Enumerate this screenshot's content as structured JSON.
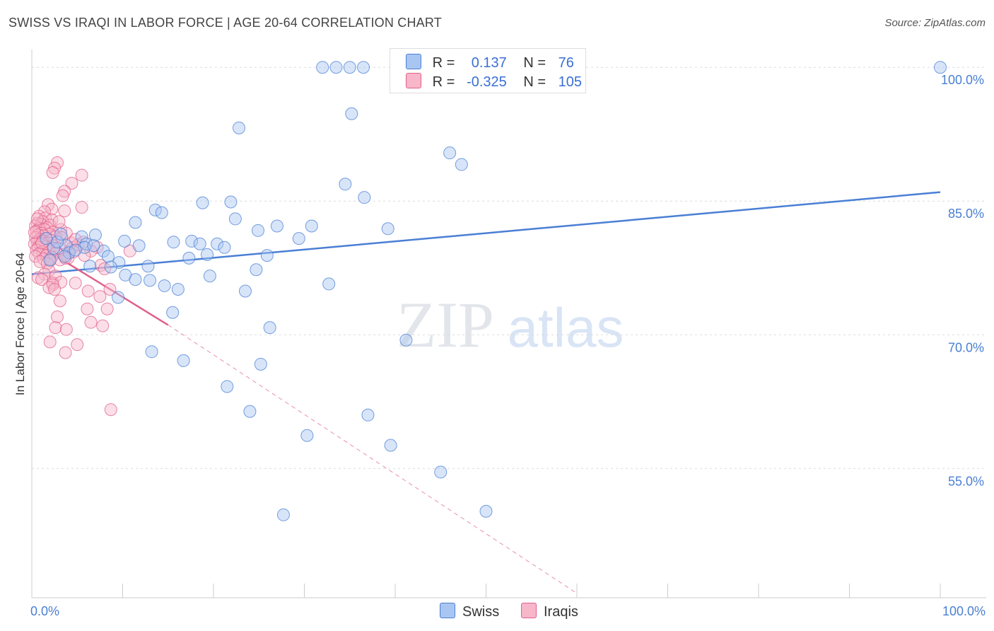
{
  "title": "SWISS VS IRAQI IN LABOR FORCE | AGE 20-64 CORRELATION CHART",
  "source": "Source: ZipAtlas.com",
  "watermark": {
    "zip": "ZIP",
    "atlas": "atlas"
  },
  "legend": {
    "rows": [
      {
        "r_label": "R =",
        "r_value": "0.137",
        "n_label": "N =",
        "n_value": "76",
        "color": "#a9c6f2"
      },
      {
        "r_label": "R =",
        "r_value": "-0.325",
        "n_label": "N =",
        "n_value": "105",
        "color": "#f7b6ca"
      }
    ]
  },
  "bottom_legend": [
    {
      "label": "Swiss",
      "color": "#a9c6f2"
    },
    {
      "label": "Iraqis",
      "color": "#f7b6ca"
    }
  ],
  "chart_data": {
    "type": "scatter",
    "title": "SWISS VS IRAQI IN LABOR FORCE | AGE 20-64 CORRELATION CHART",
    "xlabel": "",
    "ylabel": "In Labor Force | Age 20-64",
    "xlim": [
      0,
      100
    ],
    "ylim": [
      40.5,
      102
    ],
    "x_tick_labels": [
      "0.0%",
      "100.0%"
    ],
    "y_ticks": [
      100,
      85,
      70,
      55
    ],
    "y_tick_labels": [
      "100.0%",
      "85.0%",
      "70.0%",
      "55.0%"
    ],
    "grid": true,
    "series": [
      {
        "name": "Swiss",
        "color": "#4a7fd4",
        "fill": "#a9c6f2",
        "trend": {
          "x0": 0,
          "y0": 76.8,
          "x1": 100,
          "y1": 86.0,
          "dashed_to": null
        },
        "points": [
          [
            32.0,
            100
          ],
          [
            33.5,
            100
          ],
          [
            35.0,
            100
          ],
          [
            36.5,
            100
          ],
          [
            100,
            100
          ],
          [
            35.2,
            94.8
          ],
          [
            22.8,
            93.2
          ],
          [
            46.0,
            90.4
          ],
          [
            47.3,
            89.1
          ],
          [
            34.5,
            86.9
          ],
          [
            36.6,
            85.4
          ],
          [
            18.8,
            84.8
          ],
          [
            21.9,
            84.9
          ],
          [
            13.6,
            84.0
          ],
          [
            14.3,
            83.7
          ],
          [
            11.4,
            82.6
          ],
          [
            22.4,
            83.0
          ],
          [
            30.8,
            82.2
          ],
          [
            27.0,
            82.2
          ],
          [
            39.2,
            81.9
          ],
          [
            24.9,
            81.7
          ],
          [
            29.4,
            80.8
          ],
          [
            7.0,
            81.2
          ],
          [
            5.5,
            81.0
          ],
          [
            10.2,
            80.5
          ],
          [
            15.6,
            80.4
          ],
          [
            17.6,
            80.5
          ],
          [
            18.5,
            80.2
          ],
          [
            20.4,
            80.2
          ],
          [
            21.2,
            79.8
          ],
          [
            11.8,
            80.0
          ],
          [
            6.0,
            80.2
          ],
          [
            5.8,
            79.8
          ],
          [
            3.8,
            80.0
          ],
          [
            2.4,
            79.7
          ],
          [
            7.9,
            79.4
          ],
          [
            8.4,
            78.8
          ],
          [
            4.1,
            79.2
          ],
          [
            3.6,
            78.8
          ],
          [
            2.0,
            78.4
          ],
          [
            9.6,
            78.1
          ],
          [
            6.4,
            77.7
          ],
          [
            12.8,
            77.7
          ],
          [
            17.3,
            78.6
          ],
          [
            19.3,
            79.0
          ],
          [
            25.9,
            78.9
          ],
          [
            8.7,
            77.6
          ],
          [
            24.7,
            77.3
          ],
          [
            10.3,
            76.7
          ],
          [
            11.4,
            76.2
          ],
          [
            13.0,
            76.1
          ],
          [
            19.6,
            76.6
          ],
          [
            14.6,
            75.5
          ],
          [
            16.1,
            75.1
          ],
          [
            32.7,
            75.7
          ],
          [
            23.5,
            74.9
          ],
          [
            9.5,
            74.2
          ],
          [
            15.5,
            72.5
          ],
          [
            26.2,
            70.8
          ],
          [
            41.2,
            69.4
          ],
          [
            13.2,
            68.1
          ],
          [
            16.7,
            67.1
          ],
          [
            25.2,
            66.7
          ],
          [
            21.5,
            64.2
          ],
          [
            24.0,
            61.4
          ],
          [
            37.0,
            61.0
          ],
          [
            30.3,
            58.7
          ],
          [
            39.5,
            57.6
          ],
          [
            45.0,
            54.6
          ],
          [
            27.7,
            49.8
          ],
          [
            50.0,
            50.2
          ],
          [
            4.8,
            79.5
          ],
          [
            2.8,
            80.4
          ],
          [
            6.8,
            80.0
          ],
          [
            3.2,
            81.3
          ],
          [
            1.6,
            80.8
          ]
        ]
      },
      {
        "name": "Iraqis",
        "color": "#e0608a",
        "fill": "#f7b6ca",
        "trend": {
          "x0": 0,
          "y0": 80.5,
          "x1": 15.0,
          "y1": 71.1,
          "dashed_to": {
            "x": 60.0,
            "y": 41.0
          }
        },
        "points": [
          [
            2.8,
            89.3
          ],
          [
            2.5,
            88.7
          ],
          [
            2.3,
            88.2
          ],
          [
            5.5,
            87.9
          ],
          [
            4.4,
            87.0
          ],
          [
            3.6,
            86.1
          ],
          [
            3.4,
            85.6
          ],
          [
            1.8,
            84.6
          ],
          [
            5.5,
            84.3
          ],
          [
            2.2,
            84.1
          ],
          [
            3.6,
            83.9
          ],
          [
            1.4,
            83.8
          ],
          [
            0.8,
            83.3
          ],
          [
            1.5,
            83.1
          ],
          [
            2.2,
            82.9
          ],
          [
            1.2,
            82.7
          ],
          [
            0.6,
            82.5
          ],
          [
            1.0,
            82.4
          ],
          [
            2.0,
            82.3
          ],
          [
            0.4,
            82.2
          ],
          [
            1.7,
            82.0
          ],
          [
            0.8,
            81.9
          ],
          [
            1.4,
            81.8
          ],
          [
            3.2,
            81.8
          ],
          [
            0.5,
            81.6
          ],
          [
            2.3,
            81.5
          ],
          [
            1.1,
            81.4
          ],
          [
            1.9,
            81.3
          ],
          [
            0.7,
            81.2
          ],
          [
            1.3,
            81.1
          ],
          [
            2.6,
            81.0
          ],
          [
            0.4,
            80.9
          ],
          [
            1.6,
            80.8
          ],
          [
            0.9,
            80.7
          ],
          [
            2.1,
            80.6
          ],
          [
            1.2,
            80.5
          ],
          [
            0.6,
            80.4
          ],
          [
            1.8,
            80.3
          ],
          [
            0.3,
            80.2
          ],
          [
            1.0,
            80.1
          ],
          [
            2.4,
            80.0
          ],
          [
            1.5,
            79.9
          ],
          [
            0.7,
            79.8
          ],
          [
            3.0,
            79.7
          ],
          [
            1.9,
            79.6
          ],
          [
            0.5,
            79.5
          ],
          [
            4.2,
            79.4
          ],
          [
            1.2,
            79.3
          ],
          [
            2.7,
            79.2
          ],
          [
            0.8,
            79.1
          ],
          [
            3.5,
            79.0
          ],
          [
            1.6,
            78.9
          ],
          [
            0.4,
            78.8
          ],
          [
            2.2,
            78.7
          ],
          [
            4.0,
            78.6
          ],
          [
            1.3,
            78.5
          ],
          [
            3.1,
            78.4
          ],
          [
            2.0,
            78.3
          ],
          [
            0.9,
            78.2
          ],
          [
            1.7,
            78.0
          ],
          [
            4.3,
            80.3
          ],
          [
            4.5,
            79.8
          ],
          [
            5.1,
            80.1
          ],
          [
            3.8,
            81.4
          ],
          [
            4.8,
            80.7
          ],
          [
            3.0,
            82.7
          ],
          [
            7.2,
            79.8
          ],
          [
            6.5,
            79.4
          ],
          [
            5.8,
            78.9
          ],
          [
            7.6,
            77.8
          ],
          [
            8.0,
            77.4
          ],
          [
            1.9,
            77.2
          ],
          [
            1.4,
            76.8
          ],
          [
            2.6,
            76.6
          ],
          [
            0.7,
            76.4
          ],
          [
            1.1,
            76.2
          ],
          [
            2.3,
            75.8
          ],
          [
            3.2,
            75.9
          ],
          [
            4.8,
            75.8
          ],
          [
            2.3,
            75.6
          ],
          [
            1.9,
            75.3
          ],
          [
            2.5,
            75.1
          ],
          [
            6.2,
            74.9
          ],
          [
            8.6,
            75.1
          ],
          [
            7.5,
            74.3
          ],
          [
            3.1,
            73.8
          ],
          [
            6.1,
            72.9
          ],
          [
            8.3,
            72.9
          ],
          [
            2.8,
            72.0
          ],
          [
            6.5,
            71.4
          ],
          [
            7.8,
            71.0
          ],
          [
            2.6,
            70.8
          ],
          [
            3.8,
            70.6
          ],
          [
            2.0,
            69.2
          ],
          [
            5.0,
            68.9
          ],
          [
            3.7,
            68.0
          ],
          [
            8.7,
            61.6
          ],
          [
            10.8,
            79.4
          ],
          [
            3.3,
            80.9
          ],
          [
            4.6,
            79.3
          ],
          [
            5.7,
            80.4
          ],
          [
            3.7,
            78.6
          ],
          [
            0.6,
            83.0
          ],
          [
            1.1,
            80.3
          ],
          [
            0.3,
            81.5
          ]
        ]
      }
    ]
  }
}
